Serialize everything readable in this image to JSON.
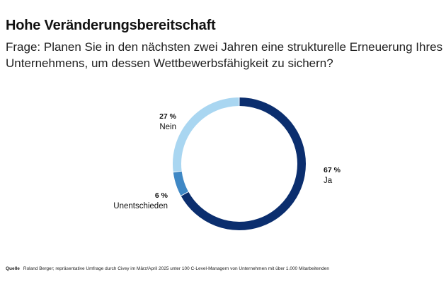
{
  "header": {
    "title": "Hohe Veränderungsbereitschaft",
    "subtitle": "Frage: Planen Sie in den nächsten zwei Jahren eine strukturelle Erneuerung Ihres Unternehmens, um dessen Wettbewerbsfähigkeit zu sichern?"
  },
  "chart_data": {
    "type": "pie",
    "variant": "donut",
    "title": "Hohe Veränderungsbereitschaft",
    "subtitle": "Frage: Planen Sie in den nächsten zwei Jahren eine strukturelle Erneuerung Ihres Unternehmens, um dessen Wettbewerbsfähigkeit zu sichern?",
    "unit": "%",
    "slices": [
      {
        "label": "Ja",
        "value": 67,
        "value_label": "67 %",
        "color": "#0b2e6e"
      },
      {
        "label": "Unentschieden",
        "value": 6,
        "value_label": "6 %",
        "color": "#3f88c5"
      },
      {
        "label": "Nein",
        "value": 27,
        "value_label": "27 %",
        "color": "#a9d6f1"
      }
    ]
  },
  "footer": {
    "source_label": "Quelle",
    "source_text": "Roland Berger; repräsentative Umfrage durch Civey im März/April 2025 unter 100 C-Level-Managern von Unternehmen mit über 1.000 Mitarbeitenden"
  }
}
